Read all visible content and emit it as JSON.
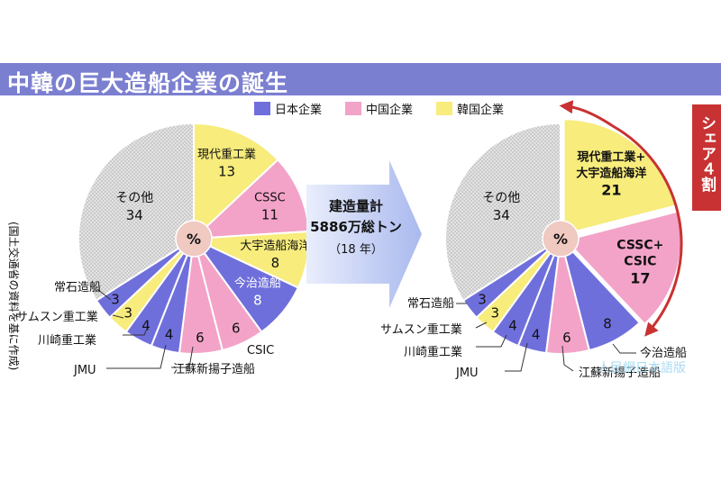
{
  "title": "中韓の巨大造船企業の誕生",
  "source_note": "(国土交通省の資料を基に作成)",
  "colors": {
    "japan": "#6f6fdc",
    "china": "#f3a3c8",
    "korea": "#f7ec7c",
    "other": "#d4d4d4",
    "accent": "#c83232",
    "header": "#7b7fd0"
  },
  "legend": [
    {
      "label": "日本企業",
      "color": "#6f6fdc"
    },
    {
      "label": "中国企業",
      "color": "#f3a3c8"
    },
    {
      "label": "韓国企業",
      "color": "#f7ec7c"
    }
  ],
  "center_symbol": "%",
  "arrow": {
    "line1": "建造量計",
    "line2": "5886万総トン",
    "line3": "（18 年）"
  },
  "share_label": "シェア４割",
  "watermark": "人民網日本語版",
  "chart_data": [
    {
      "type": "pie",
      "slices": [
        {
          "label": "現代重工業",
          "value": 13,
          "group": "korea"
        },
        {
          "label": "CSSC",
          "value": 11,
          "group": "china"
        },
        {
          "label": "大宇造船海洋",
          "value": 8,
          "group": "korea"
        },
        {
          "label": "今治造船",
          "value": 8,
          "group": "japan"
        },
        {
          "label": "CSIC",
          "value": 6,
          "group": "china"
        },
        {
          "label": "江蘇新揚子造船",
          "value": 6,
          "group": "china"
        },
        {
          "label": "JMU",
          "value": 4,
          "group": "japan"
        },
        {
          "label": "川崎重工業",
          "value": 4,
          "group": "japan"
        },
        {
          "label": "サムスン重工業",
          "value": 3,
          "group": "korea"
        },
        {
          "label": "常石造船",
          "value": 3,
          "group": "japan"
        },
        {
          "label": "その他",
          "value": 34,
          "group": "other"
        }
      ]
    },
    {
      "type": "pie",
      "slices": [
        {
          "label": "現代重工業+ 大宇造船海洋",
          "value": 21,
          "group": "korea"
        },
        {
          "label": "CSSC+ CSIC",
          "value": 17,
          "group": "china"
        },
        {
          "label": "今治造船",
          "value": 8,
          "group": "japan"
        },
        {
          "label": "江蘇新揚子造船",
          "value": 6,
          "group": "china"
        },
        {
          "label": "JMU",
          "value": 4,
          "group": "japan"
        },
        {
          "label": "川崎重工業",
          "value": 4,
          "group": "japan"
        },
        {
          "label": "サムスン重工業",
          "value": 3,
          "group": "korea"
        },
        {
          "label": "常石造船",
          "value": 3,
          "group": "japan"
        },
        {
          "label": "その他",
          "value": 34,
          "group": "other"
        }
      ]
    }
  ]
}
